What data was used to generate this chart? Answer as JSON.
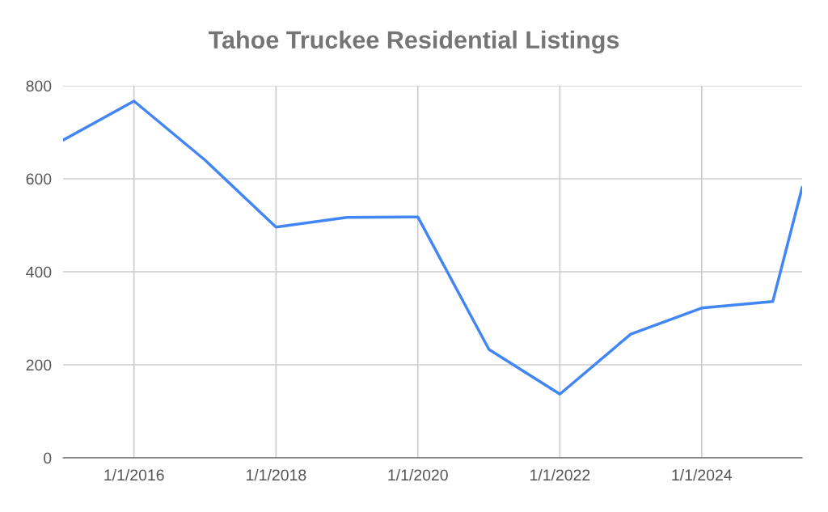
{
  "chart_data": {
    "type": "line",
    "title": "Tahoe Truckee Residential Listings",
    "x": [
      "2015-01-01",
      "2016-01-01",
      "2017-01-01",
      "2018-01-01",
      "2019-01-01",
      "2020-01-01",
      "2021-01-01",
      "2022-01-01",
      "2023-01-01",
      "2024-01-01",
      "2025-01-01",
      "2025-06-01"
    ],
    "series": [
      {
        "color": "#4285f4",
        "values": [
          683,
          767,
          640,
          496,
          517,
          518,
          233,
          137,
          266,
          322,
          336,
          581
        ]
      }
    ],
    "xlim": [
      "2015-01-01",
      "2025-06-01"
    ],
    "xticks": [
      {
        "value": "2016-01-01",
        "label": "1/1/2016"
      },
      {
        "value": "2018-01-01",
        "label": "1/1/2018"
      },
      {
        "value": "2020-01-01",
        "label": "1/1/2020"
      },
      {
        "value": "2022-01-01",
        "label": "1/1/2022"
      },
      {
        "value": "2024-01-01",
        "label": "1/1/2024"
      }
    ],
    "ylim": [
      0,
      800
    ],
    "yticks": [
      0,
      200,
      400,
      600,
      800
    ],
    "grid": true,
    "marker": "none",
    "line_style": "solid"
  }
}
